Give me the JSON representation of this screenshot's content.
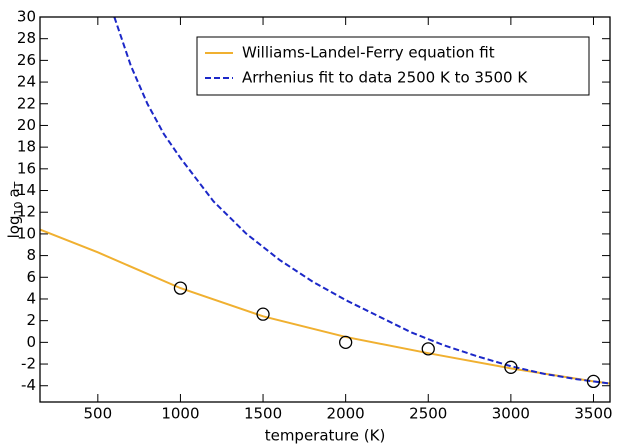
{
  "chart_data": {
    "type": "line",
    "xlabel": "temperature (K)",
    "ylabel": [
      "log",
      "10",
      "a",
      "T"
    ],
    "xlim": [
      150,
      3600
    ],
    "ylim": [
      -5.5,
      30
    ],
    "xticks": [
      500,
      1000,
      1500,
      2000,
      2500,
      3000,
      3500
    ],
    "yticks": [
      -4,
      -2,
      0,
      2,
      4,
      6,
      8,
      10,
      12,
      14,
      16,
      18,
      20,
      22,
      24,
      26,
      28,
      30
    ],
    "legend": "upper right",
    "series": [
      {
        "name": "Williams-Landel-Ferry equation fit",
        "color": "#f0b030",
        "style": "solid",
        "x": [
          150,
          500,
          1000,
          1500,
          2000,
          2500,
          3000,
          3500,
          3600
        ],
        "values": [
          10.4,
          8.3,
          5.0,
          2.4,
          0.5,
          -1.0,
          -2.4,
          -3.6,
          -3.8
        ]
      },
      {
        "name": "Arrhenius fit to data 2500 K to 3500 K",
        "color": "#1c28c8",
        "style": "dashed",
        "x": [
          600,
          700,
          800,
          900,
          1000,
          1200,
          1400,
          1600,
          1800,
          2000,
          2200,
          2400,
          2600,
          2800,
          3000,
          3200,
          3400,
          3600
        ],
        "values": [
          30,
          25.5,
          22,
          19.2,
          17,
          13,
          10,
          7.6,
          5.6,
          3.9,
          2.4,
          0.9,
          -0.3,
          -1.3,
          -2.2,
          -2.9,
          -3.4,
          -3.8
        ]
      }
    ],
    "points": {
      "x": [
        1000,
        1500,
        2000,
        2500,
        3000,
        3500
      ],
      "values": [
        5,
        2.6,
        0,
        -0.6,
        -2.3,
        -3.6
      ]
    }
  }
}
